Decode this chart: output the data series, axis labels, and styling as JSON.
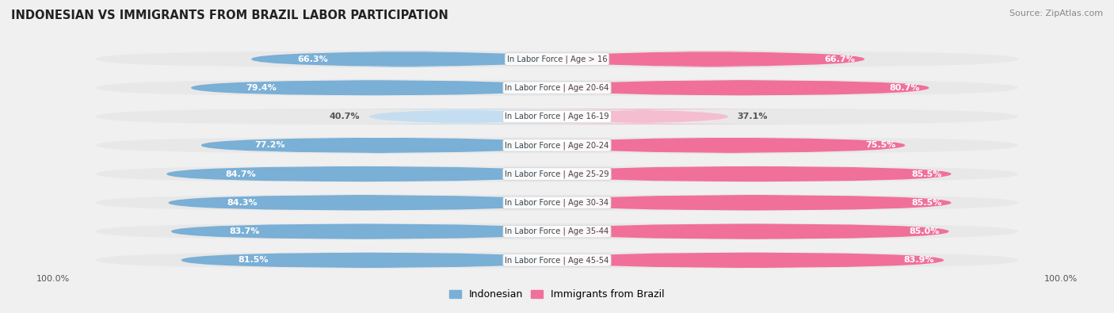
{
  "title": "INDONESIAN VS IMMIGRANTS FROM BRAZIL LABOR PARTICIPATION",
  "source": "Source: ZipAtlas.com",
  "categories": [
    "In Labor Force | Age > 16",
    "In Labor Force | Age 20-64",
    "In Labor Force | Age 16-19",
    "In Labor Force | Age 20-24",
    "In Labor Force | Age 25-29",
    "In Labor Force | Age 30-34",
    "In Labor Force | Age 35-44",
    "In Labor Force | Age 45-54"
  ],
  "indonesian": [
    66.3,
    79.4,
    40.7,
    77.2,
    84.7,
    84.3,
    83.7,
    81.5
  ],
  "brazil": [
    66.7,
    80.7,
    37.1,
    75.5,
    85.5,
    85.5,
    85.0,
    83.9
  ],
  "indonesian_color": "#7aafd6",
  "indonesian_color_light": "#c5ddf0",
  "brazil_color": "#f0709a",
  "brazil_color_light": "#f5bdd0",
  "row_bg": "#e8e8e8",
  "bg_color": "#f0f0f0",
  "label_white": "#ffffff",
  "label_dark": "#555555",
  "center_label_bg": "#ffffff",
  "center_label_color": "#444444",
  "max_val": 100.0,
  "legend_indonesian": "Indonesian",
  "legend_brazil": "Immigrants from Brazil",
  "light_rows": [
    2
  ]
}
